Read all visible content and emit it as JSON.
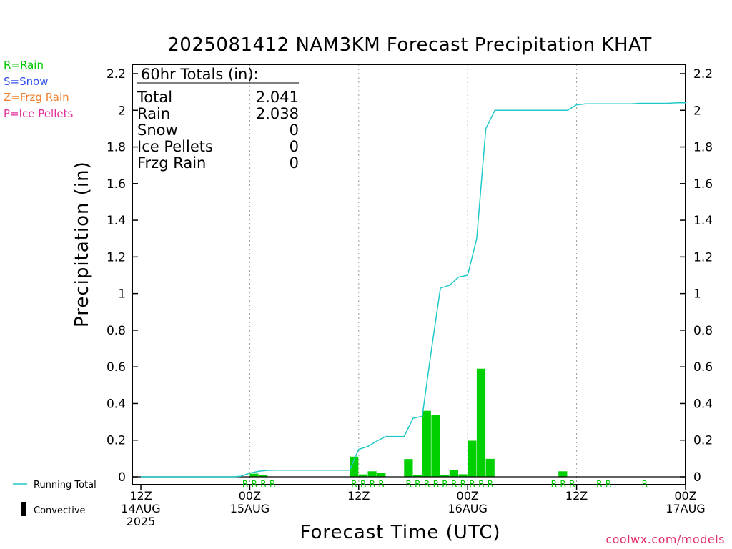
{
  "title": "2025081412 NAM3KM Forecast Precipitation KHAT",
  "ptype_legend": [
    {
      "text": "R=Rain",
      "color": "#00c800"
    },
    {
      "text": "S=Snow",
      "color": "#3050f0"
    },
    {
      "text": "Z=Frzg Rain",
      "color": "#f08030"
    },
    {
      "text": "P=Ice Pellets",
      "color": "#e0309a"
    }
  ],
  "totals": {
    "header": "60hr Totals (in):",
    "rows": [
      {
        "label": "Total",
        "value": "2.041"
      },
      {
        "label": "Rain",
        "value": "2.038"
      },
      {
        "label": "Snow",
        "value": "0"
      },
      {
        "label": "Ice Pellets",
        "value": "0"
      },
      {
        "label": "Frzg Rain",
        "value": "0"
      }
    ]
  },
  "bottom_legend": {
    "running_total": "Running Total",
    "convective": "Convective"
  },
  "credit": "coolwx.com/models",
  "chart_data": {
    "type": "bar",
    "xlabel": "Forecast Time (UTC)",
    "ylabel": "Precipitation (in)",
    "ylim": [
      0,
      2.2
    ],
    "xlim_hours": [
      0,
      60
    ],
    "yticks": [
      0,
      0.2,
      0.4,
      0.6,
      0.8,
      1,
      1.2,
      1.4,
      1.6,
      1.8,
      2,
      2.2
    ],
    "ytick_labels": [
      "0",
      "0.2",
      "0.4",
      "0.6",
      "0.8",
      "1",
      "1.2",
      "1.4",
      "1.6",
      "1.8",
      "2",
      "2.2"
    ],
    "xticks": [
      {
        "hour": 0,
        "lines": [
          "12Z",
          "14AUG",
          "2025"
        ]
      },
      {
        "hour": 12,
        "lines": [
          "00Z",
          "15AUG"
        ]
      },
      {
        "hour": 24,
        "lines": [
          "12Z"
        ]
      },
      {
        "hour": 36,
        "lines": [
          "00Z",
          "16AUG"
        ]
      },
      {
        "hour": 48,
        "lines": [
          "12Z"
        ]
      },
      {
        "hour": 60,
        "lines": [
          "00Z",
          "17AUG"
        ]
      }
    ],
    "grid": true,
    "series": [
      {
        "name": "Running Total",
        "type": "line",
        "color": "#20c8c8",
        "x": [
          0,
          1,
          2,
          3,
          4,
          5,
          6,
          7,
          8,
          9,
          10,
          11,
          12,
          13,
          14,
          15,
          16,
          17,
          18,
          19,
          20,
          21,
          22,
          23,
          24,
          25,
          26,
          27,
          28,
          29,
          30,
          31,
          32,
          33,
          34,
          35,
          36,
          37,
          38,
          39,
          40,
          41,
          42,
          43,
          44,
          45,
          46,
          47,
          48,
          49,
          50,
          51,
          52,
          53,
          54,
          55,
          56,
          57,
          58,
          59,
          60
        ],
        "values": [
          0,
          0,
          0,
          0,
          0,
          0,
          0,
          0,
          0,
          0,
          0,
          0.003,
          0.02,
          0.03,
          0.035,
          0.036,
          0.036,
          0.036,
          0.036,
          0.036,
          0.036,
          0.036,
          0.036,
          0.036,
          0.15,
          0.165,
          0.195,
          0.22,
          0.22,
          0.22,
          0.32,
          0.33,
          0.69,
          1.03,
          1.045,
          1.09,
          1.1,
          1.3,
          1.9,
          2.0,
          2.0,
          2.0,
          2.0,
          2.0,
          2.0,
          2.0,
          2.0,
          2.0,
          2.03,
          2.035,
          2.035,
          2.035,
          2.035,
          2.035,
          2.035,
          2.038,
          2.038,
          2.038,
          2.038,
          2.041,
          2.041
        ]
      },
      {
        "name": "Precipitation",
        "type": "bar",
        "color": "#00d000",
        "x": [
          12,
          13,
          23,
          24,
          25,
          26,
          29,
          30,
          31,
          32,
          33,
          34,
          35,
          36,
          37,
          38,
          46
        ],
        "values": [
          0.017,
          0.008,
          0.11,
          0.013,
          0.03,
          0.022,
          0.097,
          0.009,
          0.36,
          0.337,
          0.012,
          0.037,
          0.014,
          0.197,
          0.59,
          0.098,
          0.03
        ]
      }
    ],
    "ptype_markers": {
      "symbol": "R",
      "color": "#00c800",
      "hours": [
        11,
        12,
        13,
        14,
        23,
        24,
        25,
        26,
        29,
        30,
        31,
        32,
        33,
        34,
        35,
        36,
        37,
        38,
        45,
        46,
        47,
        50,
        51,
        55
      ]
    }
  }
}
